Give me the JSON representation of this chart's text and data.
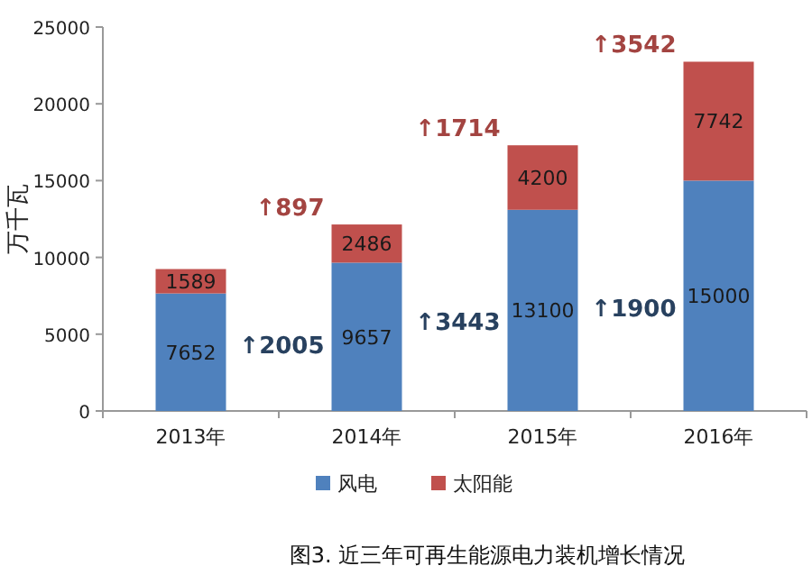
{
  "chart_data": {
    "type": "bar",
    "stacked": true,
    "categories": [
      "2013年",
      "2014年",
      "2015年",
      "2016年"
    ],
    "series": [
      {
        "name": "风电",
        "color": "#4f81bd",
        "values": [
          7652,
          9657,
          13100,
          15000
        ]
      },
      {
        "name": "太阳能",
        "color": "#c0504d",
        "values": [
          1589,
          2486,
          4200,
          7742
        ]
      }
    ],
    "ylabel": "万千瓦",
    "ylim": [
      0,
      25000
    ],
    "yticks": [
      0,
      5000,
      10000,
      15000,
      20000,
      25000
    ],
    "data_labels": true,
    "legend": "bottom",
    "grid": false,
    "title": "图3. 近三年可再生能源电力装机增长情况",
    "annotations": [
      "↑2005",
      "↑897",
      "↑3443",
      "↑1714",
      "↑1900",
      "↑3542"
    ]
  }
}
